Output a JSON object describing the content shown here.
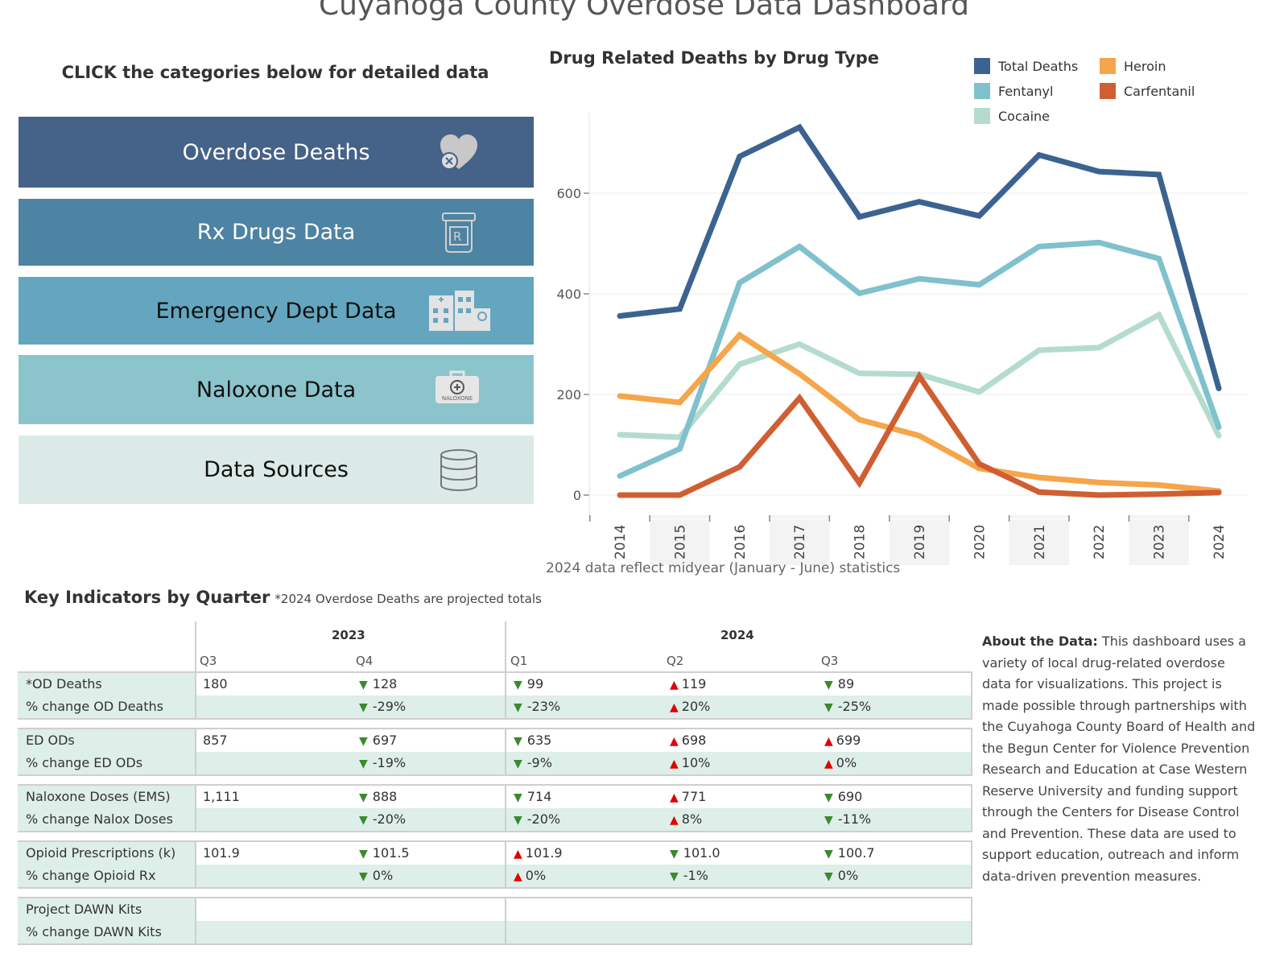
{
  "page": {
    "title": "Cuyahoga County Overdose Data Dashboard"
  },
  "nav": {
    "heading": "CLICK the categories below for detailed data",
    "buttons": [
      {
        "label": "Overdose Deaths",
        "icon": "heart-x-icon",
        "bg": "#456288",
        "fg": "#ffffff"
      },
      {
        "label": "Rx Drugs Data",
        "icon": "rx-bottle-icon",
        "bg": "#4d83a3",
        "fg": "#ffffff"
      },
      {
        "label": "Emergency Dept Data",
        "icon": "hospital-icon",
        "bg": "#64a6bf",
        "fg": "#111111"
      },
      {
        "label": "Naloxone Data",
        "icon": "naloxone-kit-icon",
        "bg": "#8cc4cc",
        "fg": "#111111"
      },
      {
        "label": "Data Sources",
        "icon": "database-icon",
        "bg": "#dbeae7",
        "fg": "#111111"
      }
    ],
    "naloxone_icon_text": "NALOXONE"
  },
  "chart_data": {
    "type": "line",
    "title": "Drug Related Deaths by Drug Type",
    "x": [
      "2014",
      "2015",
      "2016",
      "2017",
      "2018",
      "2019",
      "2020",
      "2021",
      "2022",
      "2023",
      "2024"
    ],
    "ylim": [
      0,
      760
    ],
    "yticks": [
      0,
      200,
      400,
      600
    ],
    "grid": true,
    "legend_position": "top-right",
    "note": "2024 data reflect midyear (January - June) statistics",
    "series": [
      {
        "name": "Total Deaths",
        "color": "#3c6390",
        "values": [
          356,
          370,
          673,
          731,
          553,
          583,
          555,
          676,
          643,
          637,
          212
        ]
      },
      {
        "name": "Fentanyl",
        "color": "#7fc1cd",
        "values": [
          38,
          92,
          422,
          494,
          401,
          430,
          418,
          494,
          502,
          470,
          135
        ]
      },
      {
        "name": "Cocaine",
        "color": "#b4dccd",
        "values": [
          120,
          115,
          260,
          300,
          242,
          240,
          205,
          288,
          293,
          358,
          118
        ]
      },
      {
        "name": "Heroin",
        "color": "#f6a54a",
        "values": [
          197,
          184,
          318,
          241,
          150,
          118,
          53,
          35,
          25,
          20,
          8
        ]
      },
      {
        "name": "Carfentanil",
        "color": "#cf5f32",
        "values": [
          0,
          0,
          56,
          193,
          24,
          236,
          62,
          6,
          0,
          2,
          5
        ]
      }
    ]
  },
  "key_indicators": {
    "title": "Key Indicators by Quarter",
    "note": "*2024 Overdose Deaths are projected totals",
    "years": [
      "2023",
      "2024"
    ],
    "quarters": [
      "Q3",
      "Q4",
      "Q1",
      "Q2",
      "Q3"
    ],
    "groups": [
      {
        "rows": [
          {
            "label": "*OD Deaths",
            "cells": [
              {
                "v": "180",
                "d": ""
              },
              {
                "v": "128",
                "d": "down"
              },
              {
                "v": "99",
                "d": "down"
              },
              {
                "v": "119",
                "d": "up"
              },
              {
                "v": "89",
                "d": "down"
              }
            ]
          },
          {
            "label": "% change OD Deaths",
            "cells": [
              {
                "v": "",
                "d": ""
              },
              {
                "v": "-29%",
                "d": "down"
              },
              {
                "v": "-23%",
                "d": "down"
              },
              {
                "v": "20%",
                "d": "up"
              },
              {
                "v": "-25%",
                "d": "down"
              }
            ]
          }
        ]
      },
      {
        "rows": [
          {
            "label": "ED ODs",
            "cells": [
              {
                "v": "857",
                "d": ""
              },
              {
                "v": "697",
                "d": "down"
              },
              {
                "v": "635",
                "d": "down"
              },
              {
                "v": "698",
                "d": "up"
              },
              {
                "v": "699",
                "d": "up"
              }
            ]
          },
          {
            "label": "% change ED ODs",
            "cells": [
              {
                "v": "",
                "d": ""
              },
              {
                "v": "-19%",
                "d": "down"
              },
              {
                "v": "-9%",
                "d": "down"
              },
              {
                "v": "10%",
                "d": "up"
              },
              {
                "v": "0%",
                "d": "up"
              }
            ]
          }
        ]
      },
      {
        "rows": [
          {
            "label": "Naloxone Doses (EMS)",
            "cells": [
              {
                "v": "1,111",
                "d": ""
              },
              {
                "v": "888",
                "d": "down"
              },
              {
                "v": "714",
                "d": "down"
              },
              {
                "v": "771",
                "d": "up"
              },
              {
                "v": "690",
                "d": "down"
              }
            ]
          },
          {
            "label": "% change Nalox Doses",
            "cells": [
              {
                "v": "",
                "d": ""
              },
              {
                "v": "-20%",
                "d": "down"
              },
              {
                "v": "-20%",
                "d": "down"
              },
              {
                "v": "8%",
                "d": "up"
              },
              {
                "v": "-11%",
                "d": "down"
              }
            ]
          }
        ]
      },
      {
        "rows": [
          {
            "label": "Opioid Prescriptions (k)",
            "cells": [
              {
                "v": "101.9",
                "d": ""
              },
              {
                "v": "101.5",
                "d": "down"
              },
              {
                "v": "101.9",
                "d": "up"
              },
              {
                "v": "101.0",
                "d": "down"
              },
              {
                "v": "100.7",
                "d": "down"
              }
            ]
          },
          {
            "label": "% change Opioid Rx",
            "cells": [
              {
                "v": "",
                "d": ""
              },
              {
                "v": "0%",
                "d": "down"
              },
              {
                "v": "0%",
                "d": "up"
              },
              {
                "v": "-1%",
                "d": "down"
              },
              {
                "v": "0%",
                "d": "down"
              }
            ]
          }
        ]
      },
      {
        "rows": [
          {
            "label": "Project DAWN Kits",
            "cells": [
              {
                "v": "",
                "d": ""
              },
              {
                "v": "",
                "d": ""
              },
              {
                "v": "",
                "d": ""
              },
              {
                "v": "",
                "d": ""
              },
              {
                "v": "",
                "d": ""
              }
            ]
          },
          {
            "label": "% change DAWN Kits",
            "cells": [
              {
                "v": "",
                "d": ""
              },
              {
                "v": "",
                "d": ""
              },
              {
                "v": "",
                "d": ""
              },
              {
                "v": "",
                "d": ""
              },
              {
                "v": "",
                "d": ""
              }
            ]
          }
        ]
      }
    ]
  },
  "about": {
    "heading": "About the Data:",
    "text": "This dashboard uses a variety of local drug-related overdose data for visualizations.  This project is made possible through partnerships with the Cuyahoga County Board of Health and the Begun Center for Violence Prevention Research and Education at Case Western Reserve University and funding support through the Centers for Disease Control and Prevention.  These data are used to support education, outreach and inform data-driven prevention measures."
  }
}
